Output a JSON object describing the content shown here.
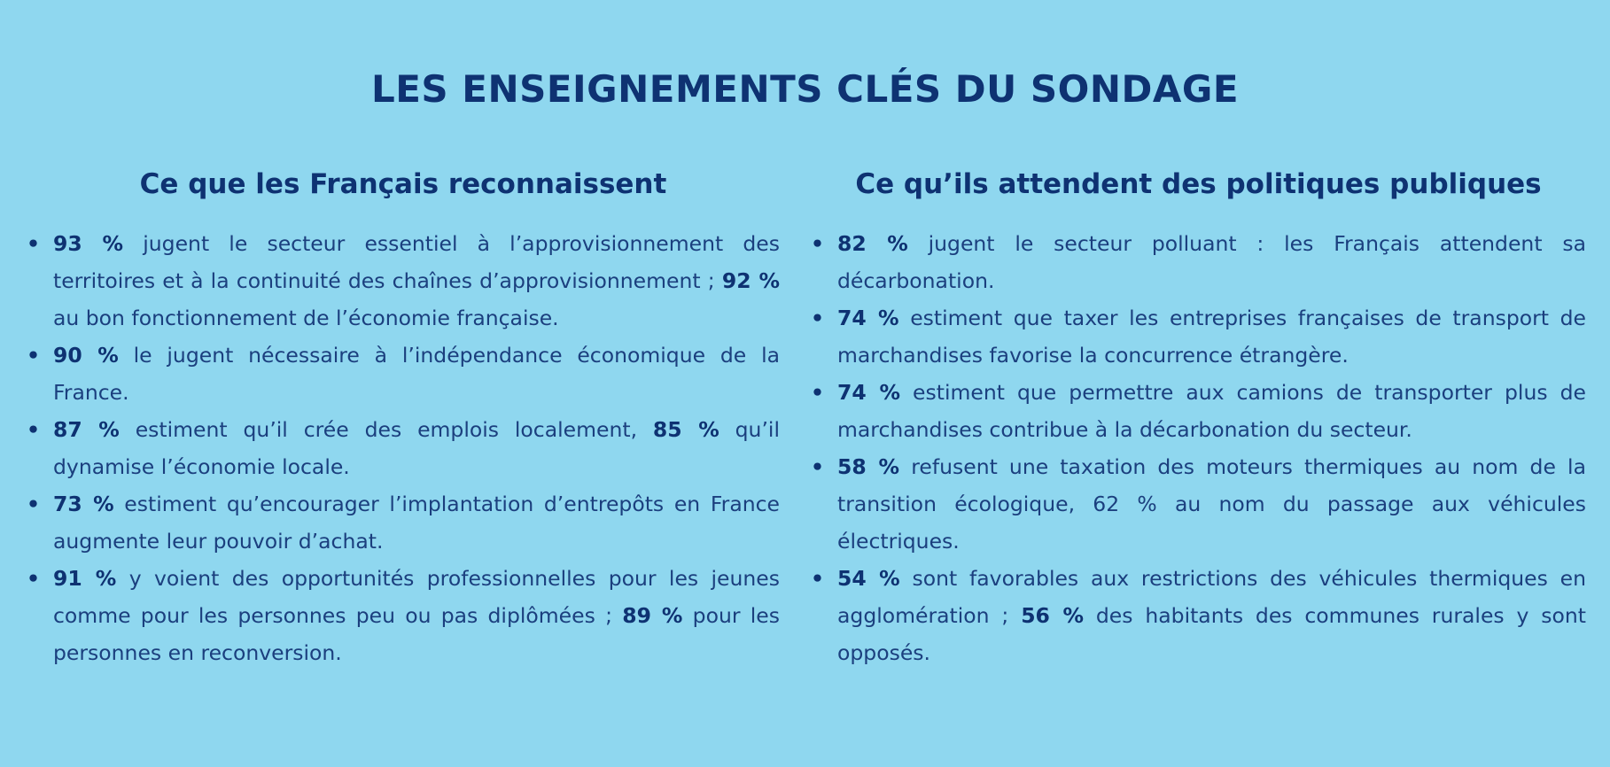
{
  "title": "LES ENSEIGNEMENTS CLÉS DU SONDAGE",
  "columns": [
    {
      "heading": "Ce que les Français reconnaissent",
      "items": [
        {
          "segments": [
            {
              "text": "93 %",
              "bold": true
            },
            {
              "text": " jugent le secteur essentiel à l’approvisionnement des territoires et à la continuité des chaînes d’approvisionnement ; ",
              "bold": false
            },
            {
              "text": "92 %",
              "bold": true
            },
            {
              "text": " au bon fonctionnement de l’économie française.",
              "bold": false
            }
          ]
        },
        {
          "segments": [
            {
              "text": "90 %",
              "bold": true
            },
            {
              "text": " le jugent nécessaire à l’indépendance économique de la France.",
              "bold": false
            }
          ]
        },
        {
          "segments": [
            {
              "text": "87 %",
              "bold": true
            },
            {
              "text": " estiment qu’il crée des emplois localement, ",
              "bold": false
            },
            {
              "text": "85 %",
              "bold": true
            },
            {
              "text": " qu’il dynamise l’économie locale.",
              "bold": false
            }
          ]
        },
        {
          "segments": [
            {
              "text": "73 %",
              "bold": true
            },
            {
              "text": " estiment qu’encourager l’implantation d’entrepôts en France augmente leur pouvoir d’achat.",
              "bold": false
            }
          ]
        },
        {
          "segments": [
            {
              "text": "91 %",
              "bold": true
            },
            {
              "text": " y voient des opportunités professionnelles pour les jeunes comme pour les personnes peu ou pas diplômées ; ",
              "bold": false
            },
            {
              "text": "89 %",
              "bold": true
            },
            {
              "text": " pour les personnes en reconversion.",
              "bold": false
            }
          ]
        }
      ]
    },
    {
      "heading": "Ce qu’ils attendent des politiques publiques",
      "items": [
        {
          "segments": [
            {
              "text": "82 %",
              "bold": true
            },
            {
              "text": " jugent le secteur polluant : les Français attendent sa décarbonation.",
              "bold": false
            }
          ]
        },
        {
          "segments": [
            {
              "text": "74 %",
              "bold": true
            },
            {
              "text": " estiment que taxer les entreprises françaises de transport de marchandises favorise la concurrence étrangère.",
              "bold": false
            }
          ]
        },
        {
          "segments": [
            {
              "text": "74 %",
              "bold": true
            },
            {
              "text": " estiment que permettre aux camions de transporter plus de marchandises contribue à la décarbonation du secteur.",
              "bold": false
            }
          ]
        },
        {
          "segments": [
            {
              "text": "58 %",
              "bold": true
            },
            {
              "text": " refusent une taxation des moteurs thermiques au nom de la transition écologique, 62 % au nom du passage aux véhicules électriques.",
              "bold": false
            }
          ]
        },
        {
          "segments": [
            {
              "text": "54 %",
              "bold": true
            },
            {
              "text": " sont favorables aux restrictions des véhicules thermiques en agglomération ; ",
              "bold": false
            },
            {
              "text": "56 %",
              "bold": true
            },
            {
              "text": " des habitants des communes rurales y sont opposés.",
              "bold": false
            }
          ]
        }
      ]
    }
  ]
}
